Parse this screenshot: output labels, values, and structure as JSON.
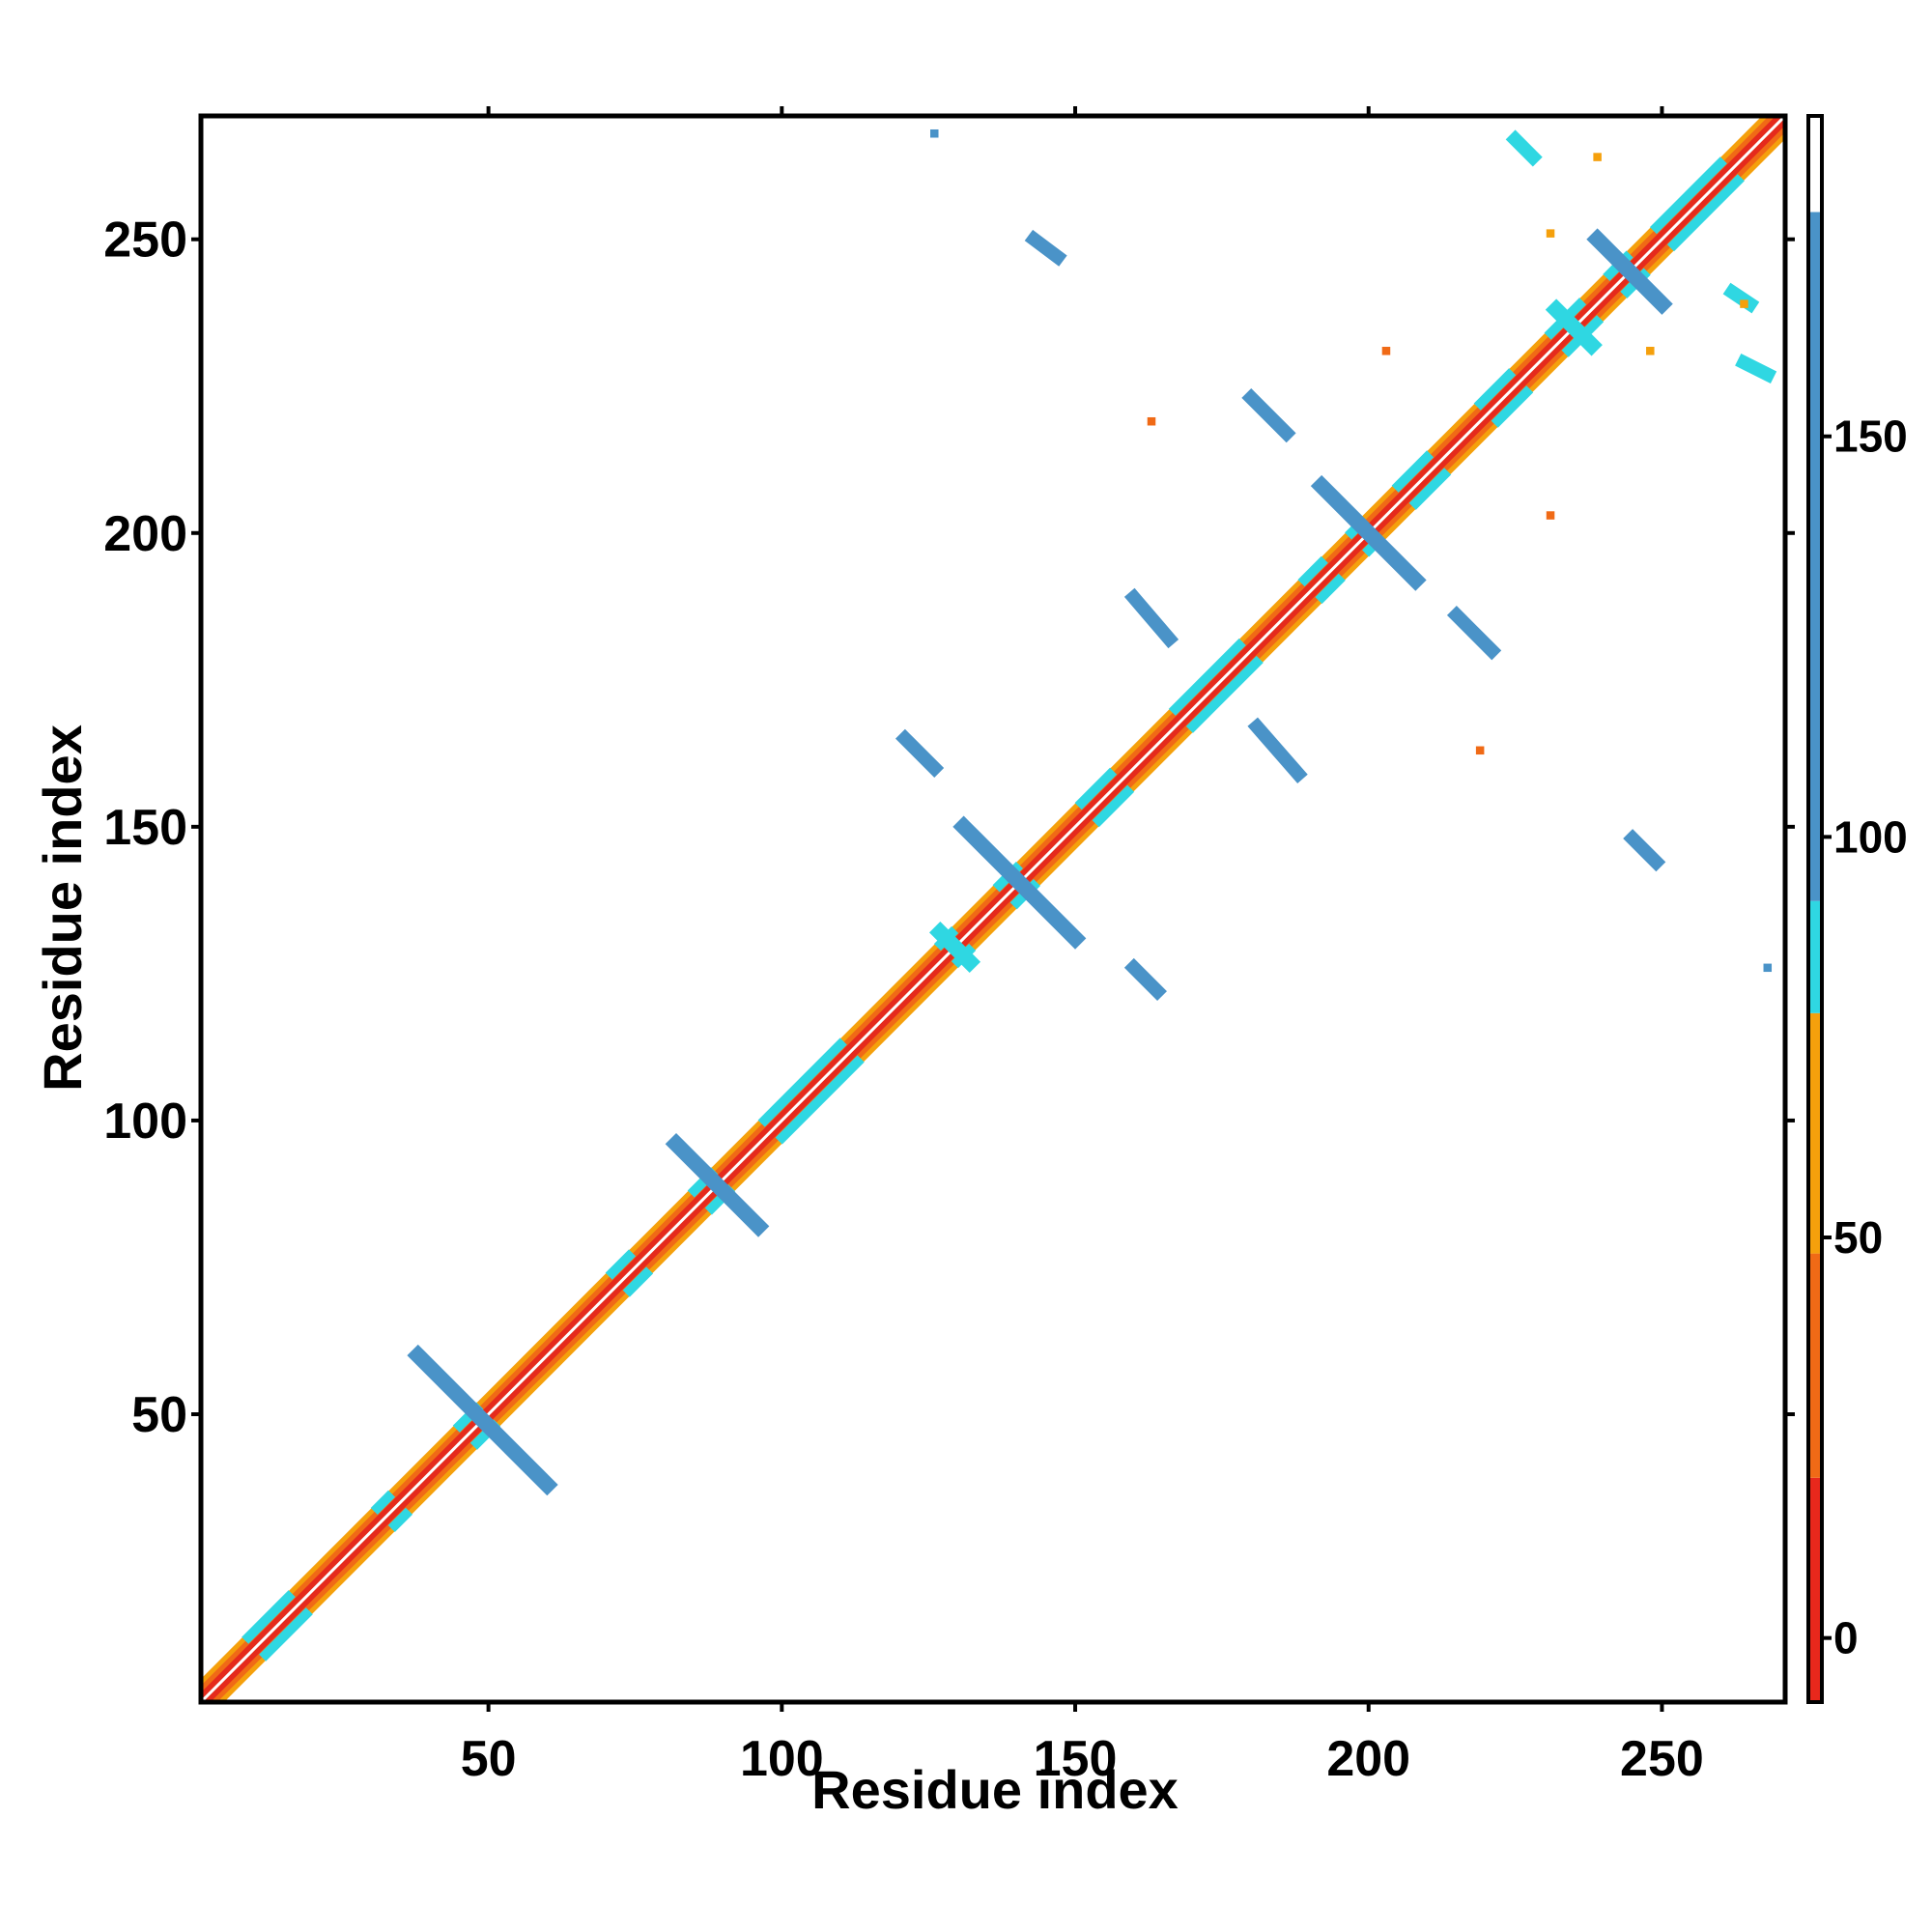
{
  "chart_data": {
    "type": "heatmap",
    "title": "",
    "xlabel": "Residue index",
    "ylabel": "Residue index",
    "xlim": [
      1,
      271
    ],
    "ylim": [
      1,
      271
    ],
    "x_ticks": [
      50,
      100,
      150,
      200,
      250
    ],
    "y_ticks": [
      50,
      100,
      150,
      200,
      250
    ],
    "x_tick_labels": [
      "50",
      "100",
      "150",
      "200",
      "250"
    ],
    "y_tick_labels": [
      "50",
      "100",
      "150",
      "200",
      "250"
    ],
    "grid": false,
    "colorbar": {
      "range": [
        -8,
        190
      ],
      "ticks": [
        0,
        50,
        100,
        150
      ],
      "tick_labels": [
        "0",
        "50",
        "100",
        "150"
      ],
      "segments": [
        {
          "from": -8,
          "to": 20,
          "color": "#e8281c"
        },
        {
          "from": 20,
          "to": 48,
          "color": "#f06a16"
        },
        {
          "from": 48,
          "to": 78,
          "color": "#f5a00c"
        },
        {
          "from": 78,
          "to": 92,
          "color": "#2fd7e2"
        },
        {
          "from": 92,
          "to": 178,
          "color": "#4a93c8"
        },
        {
          "from": 178,
          "to": 190,
          "color": "#ffffff"
        }
      ]
    },
    "colors": {
      "diag_core": "#e52a1c",
      "diag_mid": "#f06a16",
      "diag_outer": "#f5a00c",
      "helix": "#2fd7e2",
      "sheet": "#4a93c8"
    },
    "diagonal_cyan_segments": [
      [
        10,
        18
      ],
      [
        32,
        35
      ],
      [
        46,
        50
      ],
      [
        72,
        76
      ],
      [
        86,
        90
      ],
      [
        98,
        112
      ],
      [
        128,
        131
      ],
      [
        138,
        142
      ],
      [
        152,
        158
      ],
      [
        168,
        180
      ],
      [
        190,
        194
      ],
      [
        198,
        200
      ],
      [
        206,
        212
      ],
      [
        220,
        226
      ],
      [
        232,
        238
      ],
      [
        242,
        246
      ],
      [
        250,
        262
      ]
    ],
    "antidiagonal_stripes": [
      {
        "x": [
          38,
          60
        ],
        "y": [
          60,
          38
        ],
        "color": "sheet"
      },
      {
        "x": [
          82,
          96
        ],
        "y": [
          96,
          82
        ],
        "color": "sheet"
      },
      {
        "x": [
          131,
          150
        ],
        "y": [
          150,
          131
        ],
        "color": "sheet"
      },
      {
        "x": [
          127,
          132
        ],
        "y": [
          132,
          127
        ],
        "color": "helix"
      },
      {
        "x": [
          192,
          208
        ],
        "y": [
          208,
          192
        ],
        "color": "sheet"
      },
      {
        "x": [
          232,
          238
        ],
        "y": [
          238,
          232
        ],
        "color": "helix"
      },
      {
        "x": [
          239,
          250
        ],
        "y": [
          250,
          239
        ],
        "color": "sheet"
      }
    ],
    "off_diagonal_stripes": [
      {
        "x": [
          121,
          126
        ],
        "y": [
          165,
          160
        ],
        "color": "sheet"
      },
      {
        "x": [
          160,
          164
        ],
        "y": [
          126,
          122
        ],
        "color": "sheet"
      },
      {
        "x": [
          160,
          166
        ],
        "y": [
          189,
          182
        ],
        "color": "sheet"
      },
      {
        "x": [
          181,
          188
        ],
        "y": [
          167,
          159
        ],
        "color": "sheet"
      },
      {
        "x": [
          180,
          186
        ],
        "y": [
          223,
          217
        ],
        "color": "sheet"
      },
      {
        "x": [
          215,
          221
        ],
        "y": [
          186,
          180
        ],
        "color": "sheet"
      },
      {
        "x": [
          143,
          147
        ],
        "y": [
          250,
          247
        ],
        "color": "sheet"
      },
      {
        "x": [
          245,
          249
        ],
        "y": [
          148,
          144
        ],
        "color": "sheet"
      },
      {
        "x": [
          225,
          228
        ],
        "y": [
          267,
          264
        ],
        "color": "helix"
      },
      {
        "x": [
          264,
          268
        ],
        "y": [
          229,
          227
        ],
        "color": "helix"
      },
      {
        "x": [
          262,
          265
        ],
        "y": [
          241,
          239
        ],
        "color": "helix"
      }
    ],
    "points": [
      {
        "x": 126,
        "y": 268,
        "color": "sheet"
      },
      {
        "x": 268,
        "y": 126,
        "color": "sheet"
      },
      {
        "x": 163,
        "y": 219,
        "color": "diag_mid"
      },
      {
        "x": 219,
        "y": 163,
        "color": "diag_mid"
      },
      {
        "x": 203,
        "y": 231,
        "color": "diag_mid"
      },
      {
        "x": 231,
        "y": 203,
        "color": "diag_mid"
      },
      {
        "x": 239,
        "y": 264,
        "color": "diag_outer"
      },
      {
        "x": 264,
        "y": 239,
        "color": "diag_outer"
      },
      {
        "x": 248,
        "y": 231,
        "color": "diag_outer"
      },
      {
        "x": 231,
        "y": 251,
        "color": "diag_outer"
      }
    ]
  }
}
